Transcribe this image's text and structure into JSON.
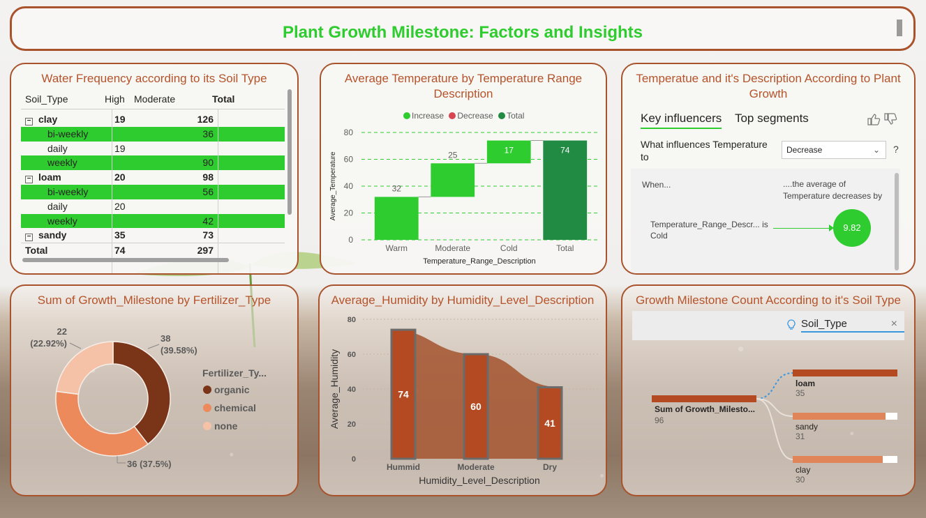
{
  "header": {
    "title": "Plant Growth Milestone: Factors and Insights"
  },
  "water_panel": {
    "title": "Water Frequency according to its Soil Type",
    "columns": [
      "Soil_Type",
      "High",
      "Moderate",
      "Total"
    ],
    "rows": [
      {
        "label": "clay",
        "level": 0,
        "high": "19",
        "moderate": "",
        "total": "126",
        "green": false,
        "bold": true
      },
      {
        "label": "bi-weekly",
        "level": 1,
        "high": "",
        "moderate": "",
        "total": "36",
        "green": true,
        "bold": false
      },
      {
        "label": "daily",
        "level": 1,
        "high": "19",
        "moderate": "",
        "total": "",
        "green": false,
        "bold": false
      },
      {
        "label": "weekly",
        "level": 1,
        "high": "",
        "moderate": "",
        "total": "90",
        "green": true,
        "bold": false
      },
      {
        "label": "loam",
        "level": 0,
        "high": "20",
        "moderate": "",
        "total": "98",
        "green": false,
        "bold": true
      },
      {
        "label": "bi-weekly",
        "level": 1,
        "high": "",
        "moderate": "",
        "total": "56",
        "green": true,
        "bold": false
      },
      {
        "label": "daily",
        "level": 1,
        "high": "20",
        "moderate": "",
        "total": "",
        "green": false,
        "bold": false
      },
      {
        "label": "weekly",
        "level": 1,
        "high": "",
        "moderate": "",
        "total": "42",
        "green": true,
        "bold": false
      },
      {
        "label": "sandy",
        "level": 0,
        "high": "35",
        "moderate": "",
        "total": "73",
        "green": false,
        "bold": true
      }
    ],
    "total_row": {
      "label": "Total",
      "high": "74",
      "total": "297"
    }
  },
  "temp_panel": {
    "title": "Average Temperature by Temperature Range Description",
    "legend": [
      {
        "label": "Increase",
        "color": "#2ecc2e"
      },
      {
        "label": "Decrease",
        "color": "#d64550"
      },
      {
        "label": "Total",
        "color": "#218a43"
      }
    ]
  },
  "influencer_panel": {
    "title": "Temperatue and it's Description According to Plant Growth",
    "tabs": [
      "Key influencers",
      "Top segments"
    ],
    "question": "What influences Temperature to",
    "select_value": "Decrease",
    "help": "?",
    "when_label": "When...",
    "then_label": "....the average of Temperature decreases by",
    "factor_label": "Temperature_Range_Descr... is Cold",
    "factor_value": "9.82"
  },
  "fert_panel": {
    "title": "Sum of Growth_Milestone by Fertilizer_Type",
    "legend_title": "Fertilizer_Ty...",
    "labels": {
      "organic": "38\n(39.58%)",
      "none": "22\n(22.92%)",
      "chemical": "36 (37.5%)"
    }
  },
  "humidity_panel": {
    "title": "Average_Humidity by Humidity_Level_Description"
  },
  "decomp_panel": {
    "title": "Growth Milestone Count According to it's Soil Type",
    "search_text": "Soil_Type",
    "close": "×",
    "root": {
      "label": "Sum of Growth_Milesto...",
      "value": "96"
    },
    "nodes": [
      {
        "label": "loam",
        "value": "35",
        "fraction": 1.0,
        "selected": true
      },
      {
        "label": "sandy",
        "value": "31",
        "fraction": 0.886,
        "selected": false
      },
      {
        "label": "clay",
        "value": "30",
        "fraction": 0.857,
        "selected": false
      }
    ]
  },
  "chart_data": [
    {
      "type": "bar",
      "subtype": "waterfall",
      "title": "Average Temperature by Temperature Range Description",
      "categories": [
        "Warm",
        "Moderate",
        "Cold",
        "Total"
      ],
      "values": [
        32,
        25,
        17,
        74
      ],
      "xlabel": "Temperature_Range_Description",
      "ylabel": "Average_Temperature",
      "ylim": [
        0,
        80
      ],
      "yticks": [
        0,
        20,
        40,
        60,
        80
      ],
      "grid": true,
      "legend": "top",
      "colors": {
        "increase": "#2ecc2e",
        "decrease": "#d64550",
        "total": "#218a43"
      }
    },
    {
      "type": "pie",
      "subtype": "donut",
      "title": "Sum of Growth_Milestone by Fertilizer_Type",
      "categories": [
        "organic",
        "chemical",
        "none"
      ],
      "values": [
        38,
        36,
        22
      ],
      "percents": [
        "39.58%",
        "37.5%",
        "22.92%"
      ],
      "colors": [
        "#7a3418",
        "#ec8a5c",
        "#f5c2a7"
      ],
      "legend": "right"
    },
    {
      "type": "bar",
      "title": "Average_Humidity by Humidity_Level_Description",
      "categories": [
        "Hummid",
        "Moderate",
        "Dry"
      ],
      "values": [
        74,
        60,
        41
      ],
      "xlabel": "Humidity_Level_Description",
      "ylabel": "Average_Humidity",
      "ylim": [
        0,
        80
      ],
      "yticks": [
        0,
        20,
        40,
        60,
        80
      ],
      "colors": {
        "bar": "#b34a22",
        "area": "#a5532e"
      }
    }
  ]
}
